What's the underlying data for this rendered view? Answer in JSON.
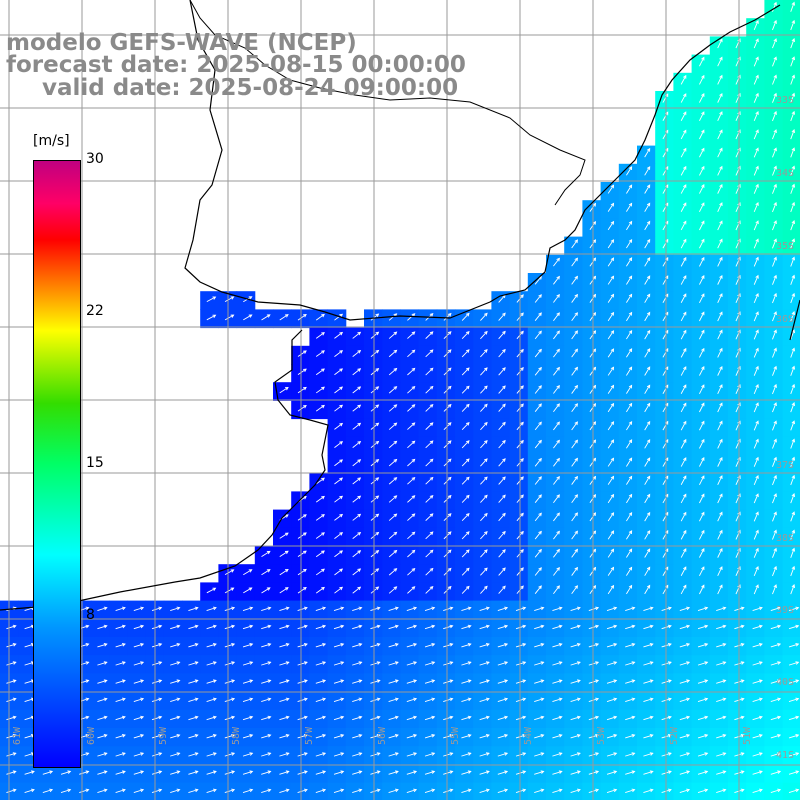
{
  "title": {
    "line1": "modelo GEFS-WAVE (NCEP)",
    "line2": "forecast date: 2025-08-15 00:00:00",
    "line3": "valid date: 2025-08-24 09:00:00"
  },
  "colorbar": {
    "unit": "[m/s]",
    "ticks": [
      "30",
      "22",
      "15",
      "8"
    ],
    "colors": [
      "#0000ff",
      "#0096ff",
      "#00ffff",
      "#00ff66",
      "#33dd00",
      "#ffff00",
      "#ff8800",
      "#ff0000",
      "#ff0066",
      "#c00080"
    ]
  },
  "latitude_labels": [
    "33S",
    "34S",
    "35S",
    "36S",
    "37S",
    "38S",
    "39S",
    "40S",
    "41S"
  ],
  "longitude_labels": [
    "61W",
    "60W",
    "59W",
    "58W",
    "57W",
    "56W",
    "55W",
    "54W",
    "53W",
    "52W",
    "51W"
  ],
  "map": {
    "field": "wind speed",
    "land_color": "#ffffff",
    "grid_color": "#9a9a9a",
    "coast_color": "#000000",
    "arrow_color": "#ffffff"
  }
}
